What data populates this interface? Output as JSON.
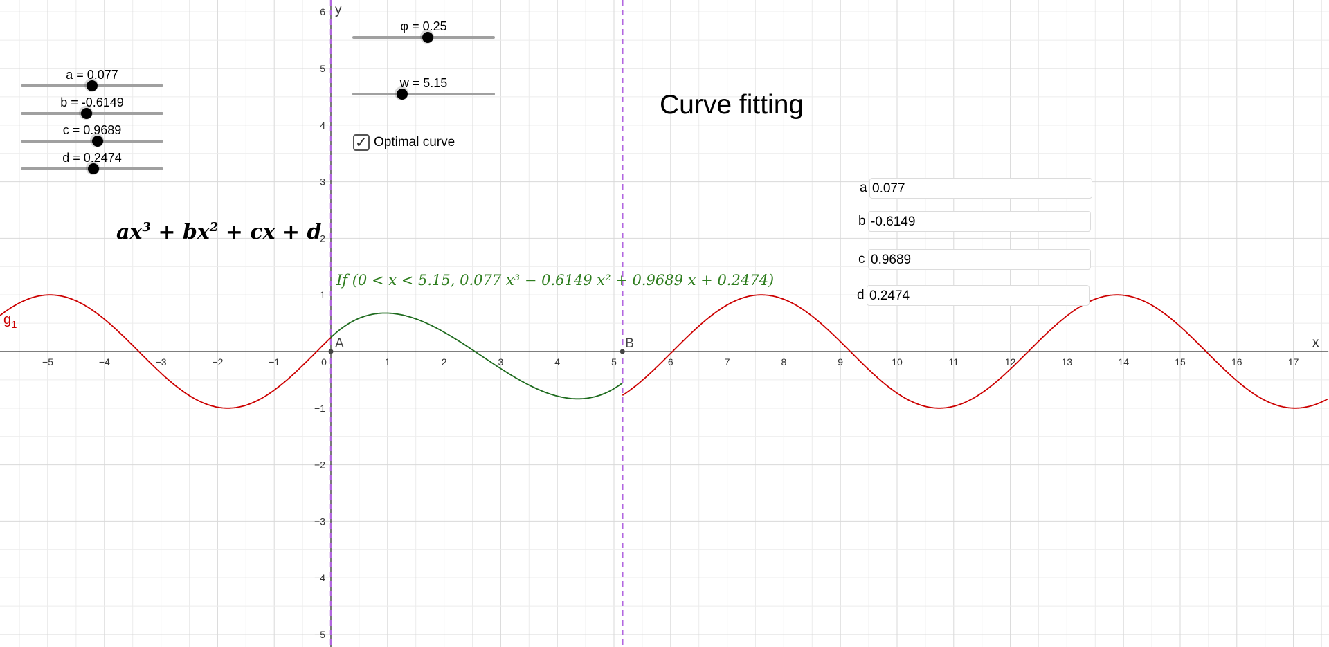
{
  "title": "Curve fitting",
  "formula": {
    "a": "ax",
    "b": "+ bx",
    "c": "+ cx + d",
    "exp3": "3",
    "exp2": "2"
  },
  "green_label": "If (0 < x < 5.15, 0.077 x³ − 0.6149 x² + 0.9689 x + 0.2474)",
  "sliders": [
    {
      "label": "a = 0.077",
      "fraction": 0.5
    },
    {
      "label": "b = -0.6149",
      "fraction": 0.46
    },
    {
      "label": "c = 0.9689",
      "fraction": 0.54
    },
    {
      "label": "d = 0.2474",
      "fraction": 0.51
    },
    {
      "label": "φ = 0.25",
      "fraction": 0.53
    },
    {
      "label": "w = 5.15",
      "fraction": 0.35
    }
  ],
  "checkbox": {
    "label": "Optimal curve",
    "checked": true,
    "mark": "✓"
  },
  "inputs": [
    {
      "label": "a",
      "value": "0.077"
    },
    {
      "label": "b",
      "value": "-0.6149"
    },
    {
      "label": "c",
      "value": "0.9689"
    },
    {
      "label": "d",
      "value": "0.2474"
    }
  ],
  "axes": {
    "x_label": "x",
    "y_label": "y",
    "x_ticks": [
      "−5",
      "−4",
      "−3",
      "−2",
      "−1",
      "0",
      "1",
      "2",
      "3",
      "4",
      "5",
      "6",
      "7",
      "8",
      "9",
      "10",
      "11",
      "12",
      "13",
      "14",
      "15",
      "16",
      "17"
    ],
    "y_ticks": [
      "6",
      "5",
      "4",
      "3",
      "2",
      "1",
      "−1",
      "−2",
      "−3",
      "−4",
      "−5"
    ],
    "xlim": [
      -5.85,
      17.6
    ],
    "ylim": [
      -5.2,
      6.2
    ]
  },
  "points": [
    {
      "name": "A",
      "x": 0,
      "y": 0
    },
    {
      "name": "B",
      "x": 5.15,
      "y": 0
    }
  ],
  "curve_label": {
    "main": "g",
    "sub": "1"
  },
  "colors": {
    "red": "#cc0000",
    "green": "#1e6b1e",
    "dashed": "#b266e0",
    "grid": "#d9d9d9",
    "axis": "#333333"
  }
}
